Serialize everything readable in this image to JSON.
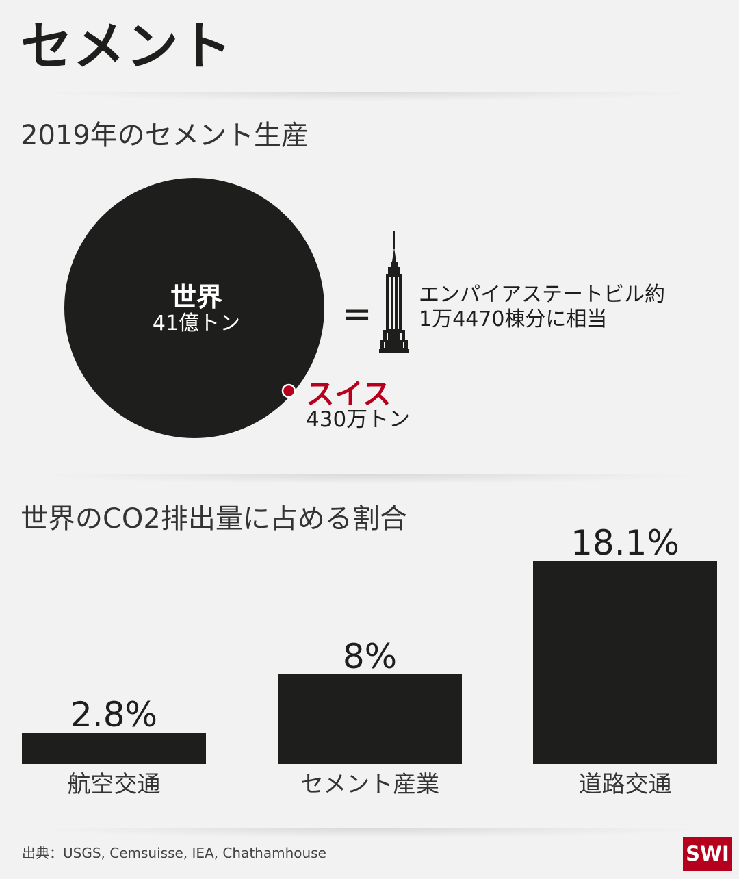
{
  "title": "セメント",
  "production": {
    "heading": "2019年のセメント生産",
    "world": {
      "name": "世界",
      "value": "41億トン"
    },
    "swiss": {
      "name": "スイス",
      "value": "430万トン"
    },
    "equals": "=",
    "equivalence_line1": "エンパイアステートビル約",
    "equivalence_line2": "1万4470棟分に相当",
    "building_icon": "empire-state-building-icon"
  },
  "emissions": {
    "heading": "世界のCO2排出量に占める割合"
  },
  "chart_data": {
    "type": "bar",
    "categories": [
      "航空交通",
      "セメント産業",
      "道路交通"
    ],
    "values": [
      2.8,
      8,
      18.1
    ],
    "value_labels": [
      "2.8%",
      "8%",
      "18.1%"
    ],
    "ylim": [
      0,
      18.1
    ],
    "grid": false
  },
  "colors": {
    "accent": "#b5001e",
    "bar": "#1e1e1c",
    "background": "#f2f2f2"
  },
  "source": "出典：USGS, Cemsuisse, IEA, Chathamhouse",
  "logo": "SWI"
}
